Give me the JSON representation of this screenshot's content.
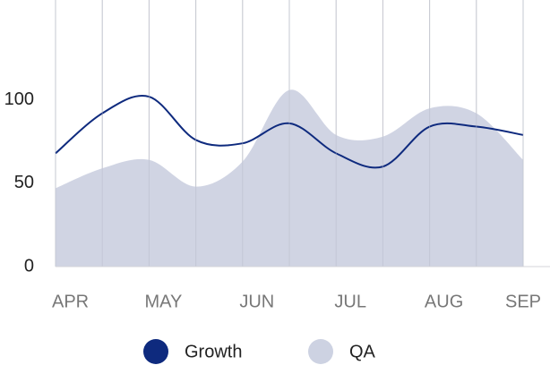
{
  "chart_data": {
    "type": "line",
    "categories": [
      "APR",
      null,
      "MAY",
      null,
      "JUN",
      null,
      "JUL",
      null,
      "AUG",
      null,
      "SEP"
    ],
    "series": [
      {
        "name": "Growth",
        "color": "#0e2a7e",
        "fill": false,
        "values": [
          68,
          92,
          102,
          76,
          74,
          86,
          68,
          60,
          84,
          84,
          79
        ]
      },
      {
        "name": "QA",
        "color": "#cdd2e2",
        "fill": true,
        "values": [
          47,
          59,
          64,
          48,
          63,
          106,
          79,
          78,
          95,
          92,
          64
        ]
      }
    ],
    "ylim": [
      0,
      160
    ],
    "yticks": [
      0,
      50,
      100
    ],
    "grid": true,
    "legend": "bottom"
  }
}
